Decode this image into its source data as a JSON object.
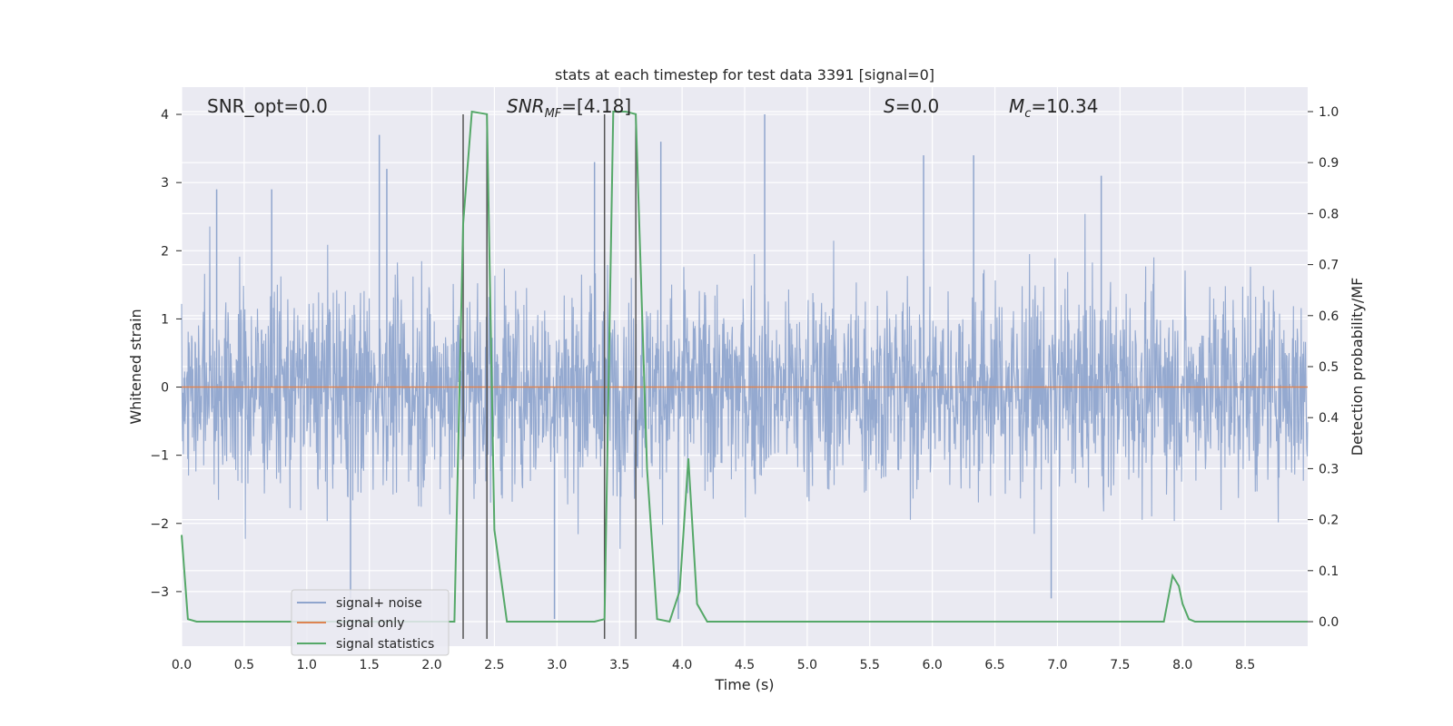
{
  "chart_data": {
    "type": "line",
    "title": "stats at each timestep for test data 3391 [signal=0]",
    "xlabel": "Time (s)",
    "ylabel_left": "Whitened strain",
    "ylabel_right": "Detection probability/MF",
    "xlim": [
      0.0,
      9.0
    ],
    "ylim_left": [
      -3.8,
      4.4
    ],
    "ylim_right": [
      -0.048,
      1.048
    ],
    "x_ticks": [
      "0.0",
      "0.5",
      "1.0",
      "1.5",
      "2.0",
      "2.5",
      "3.0",
      "3.5",
      "4.0",
      "4.5",
      "5.0",
      "5.5",
      "6.0",
      "6.5",
      "7.0",
      "7.5",
      "8.0",
      "8.5"
    ],
    "x_tick_values": [
      0.0,
      0.5,
      1.0,
      1.5,
      2.0,
      2.5,
      3.0,
      3.5,
      4.0,
      4.5,
      5.0,
      5.5,
      6.0,
      6.5,
      7.0,
      7.5,
      8.0,
      8.5
    ],
    "y_left_ticks": [
      "−3",
      "−2",
      "−1",
      "0",
      "1",
      "2",
      "3",
      "4"
    ],
    "y_left_tick_values": [
      -3,
      -2,
      -1,
      0,
      1,
      2,
      3,
      4
    ],
    "y_right_ticks": [
      "0.0",
      "0.1",
      "0.2",
      "0.3",
      "0.4",
      "0.5",
      "0.6",
      "0.7",
      "0.8",
      "0.9",
      "1.0"
    ],
    "y_right_tick_values": [
      0.0,
      0.1,
      0.2,
      0.3,
      0.4,
      0.5,
      0.6,
      0.7,
      0.8,
      0.9,
      1.0
    ],
    "grid": true,
    "annotations": {
      "snr_opt": "SNR_opt=0.0",
      "snr_mf_name": "SNR",
      "snr_mf_sub": "MF",
      "snr_mf_value": "=[4.18]",
      "s_name": "S",
      "s_value": "=0.0",
      "mc_name": "M",
      "mc_sub": "c",
      "mc_value": "=10.34"
    },
    "vertical_lines": {
      "x": [
        2.25,
        2.44,
        3.38,
        3.63
      ],
      "y_range": [
        -3.8,
        4.0
      ]
    },
    "legend": {
      "position": "lower-left",
      "entries": [
        "signal+ noise",
        "signal only",
        "signal statistics"
      ]
    },
    "series": [
      {
        "name": "signal+ noise",
        "axis": "left",
        "color": "#8fa5cd",
        "description_of_values": "noisy whitened strain oscillating roughly between -3.4 and 4.0 sampled densely over 0-9 s",
        "amplitude_p95": 2.2,
        "peaks": [
          {
            "x": 0.28,
            "y": 2.9
          },
          {
            "x": 0.72,
            "y": 2.9
          },
          {
            "x": 1.58,
            "y": 3.7
          },
          {
            "x": 1.64,
            "y": 3.2
          },
          {
            "x": 3.3,
            "y": 3.3
          },
          {
            "x": 3.83,
            "y": 3.6
          },
          {
            "x": 4.66,
            "y": 4.0
          },
          {
            "x": 5.93,
            "y": 3.4
          },
          {
            "x": 6.33,
            "y": 3.4
          },
          {
            "x": 7.35,
            "y": 3.1
          },
          {
            "x": 3.97,
            "y": -3.4
          },
          {
            "x": 2.98,
            "y": -3.4
          },
          {
            "x": 6.95,
            "y": -3.1
          },
          {
            "x": 1.35,
            "y": -3.1
          }
        ]
      },
      {
        "name": "signal only",
        "axis": "left",
        "color": "#dd8452",
        "x": [
          0.0,
          9.0
        ],
        "values": [
          0.0,
          0.0
        ]
      },
      {
        "name": "signal statistics",
        "axis": "right",
        "color": "#55a868",
        "x": [
          0.0,
          0.05,
          0.12,
          0.2,
          2.1,
          2.18,
          2.25,
          2.32,
          2.44,
          2.5,
          2.6,
          3.3,
          3.38,
          3.45,
          3.55,
          3.63,
          3.72,
          3.8,
          3.9,
          3.98,
          4.05,
          4.12,
          4.2,
          7.85,
          7.92,
          7.97,
          8.0,
          8.05,
          8.1,
          9.0
        ],
        "values": [
          0.17,
          0.005,
          0.0,
          0.0,
          0.0,
          0.0,
          0.78,
          1.0,
          0.995,
          0.18,
          0.0,
          0.0,
          0.005,
          1.0,
          1.0,
          0.995,
          0.3,
          0.005,
          0.0,
          0.06,
          0.32,
          0.035,
          0.0,
          0.0,
          0.09,
          0.07,
          0.035,
          0.005,
          0.0,
          0.0
        ]
      }
    ]
  }
}
